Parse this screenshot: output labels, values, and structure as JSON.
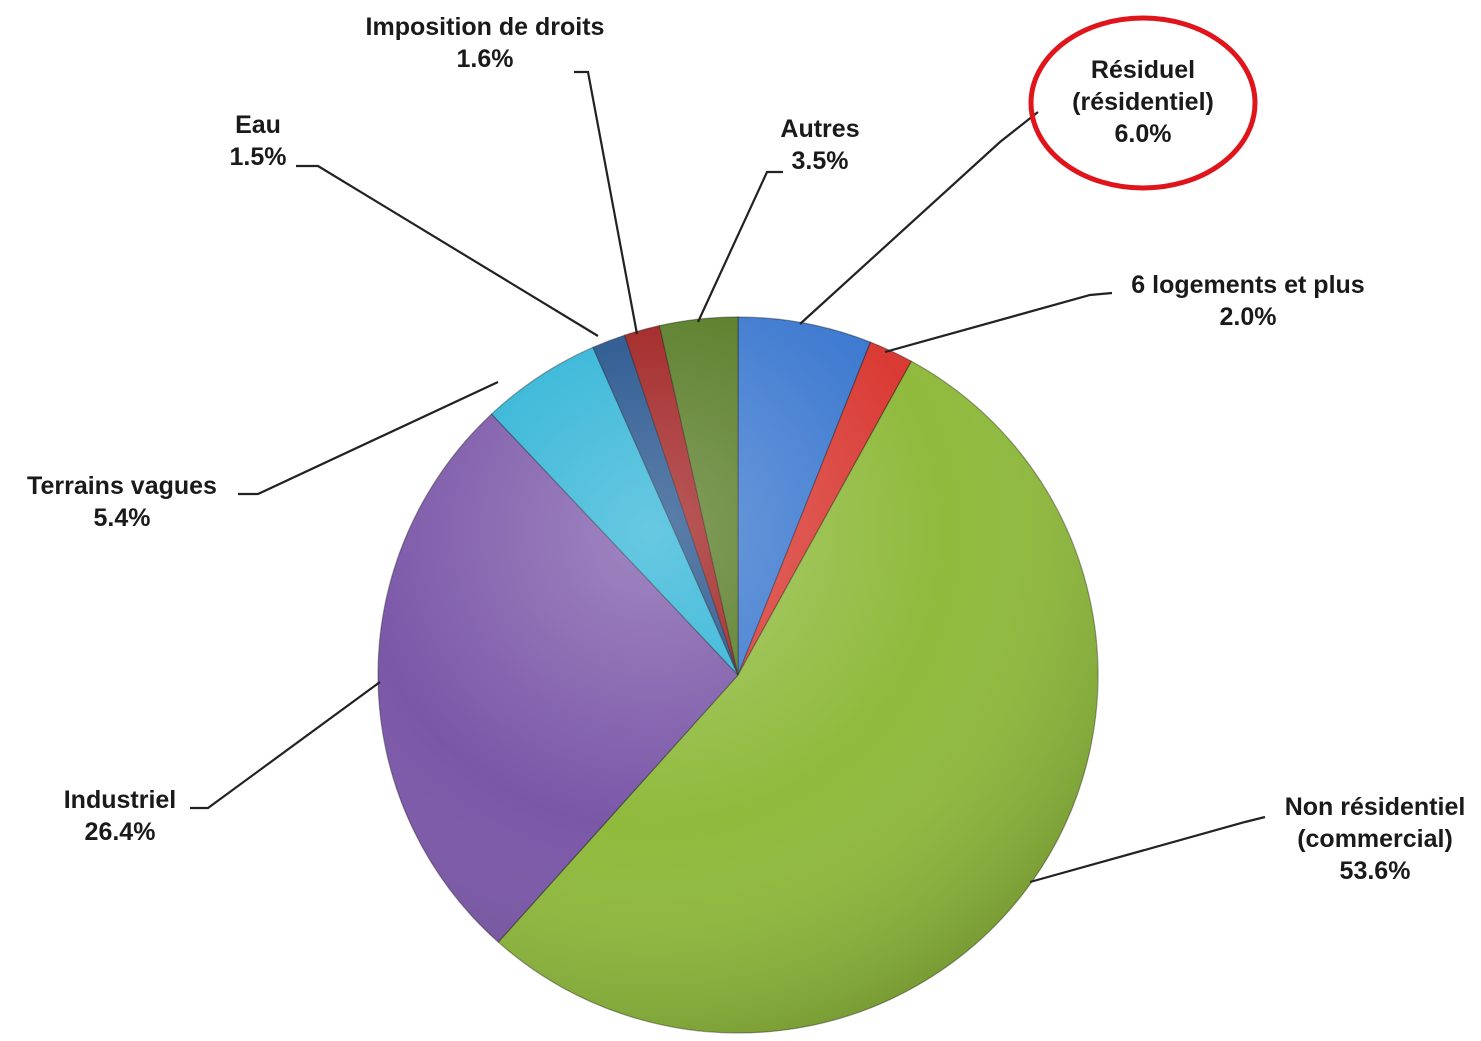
{
  "chart_data": {
    "type": "pie",
    "title": "",
    "slices": [
      {
        "label": "Résiduel",
        "label_line2": "(résidentiel)",
        "value": 6.0,
        "value_label": "6.0%",
        "color": "#3b78cf",
        "highlighted": true
      },
      {
        "label": "6 logements et plus",
        "label_line2": "",
        "value": 2.0,
        "value_label": "2.0%",
        "color": "#d93a33",
        "highlighted": false
      },
      {
        "label": "Non résidentiel",
        "label_line2": "(commercial)",
        "value": 53.6,
        "value_label": "53.6%",
        "color": "#8fba3c",
        "highlighted": false
      },
      {
        "label": "Industriel",
        "label_line2": "",
        "value": 26.4,
        "value_label": "26.4%",
        "color": "#7b57a8",
        "highlighted": false
      },
      {
        "label": "Terrains vagues",
        "label_line2": "",
        "value": 5.4,
        "value_label": "5.4%",
        "color": "#2db3d6",
        "highlighted": false
      },
      {
        "label": "Eau",
        "label_line2": "",
        "value": 1.5,
        "value_label": "1.5%",
        "color": "#1f4f8a",
        "highlighted": false
      },
      {
        "label": "Imposition de droits",
        "label_line2": "",
        "value": 1.6,
        "value_label": "1.6%",
        "color": "#9e1c1c",
        "highlighted": false
      },
      {
        "label": "Autres",
        "label_line2": "",
        "value": 3.5,
        "value_label": "3.5%",
        "color": "#557a22",
        "highlighted": false
      }
    ],
    "start": "12 o'clock",
    "direction": "clockwise",
    "highlight_color": "#e0151b"
  }
}
